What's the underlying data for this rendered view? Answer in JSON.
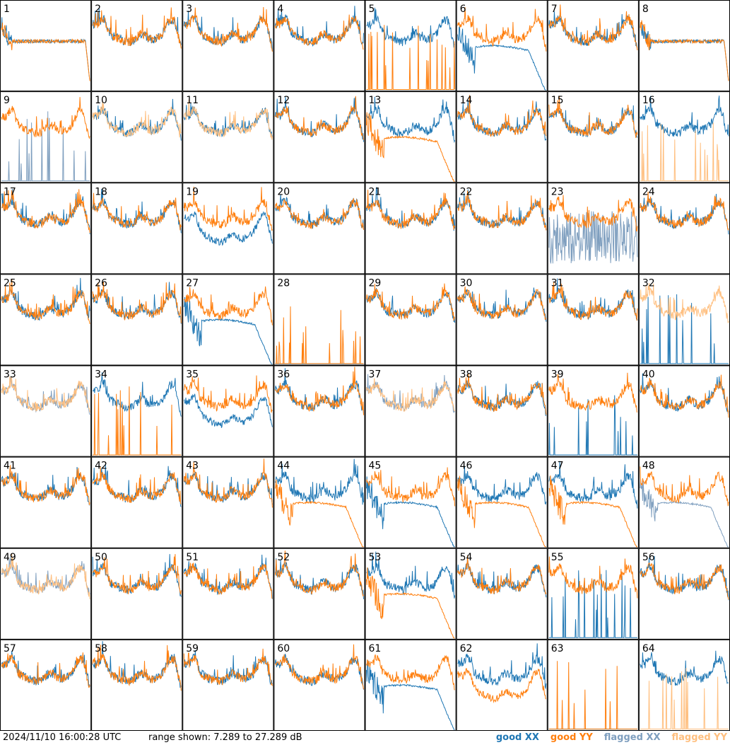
{
  "chart_data": {
    "type": "line",
    "layout": "8x8 small multiples",
    "range_db": [
      7.289,
      27.289
    ],
    "panels": [
      {
        "id": "1",
        "xx": "good",
        "yy": "good",
        "xx_shape": "flat",
        "yy_shape": "flat"
      },
      {
        "id": "2",
        "xx": "good",
        "yy": "good",
        "xx_shape": "normal",
        "yy_shape": "normal"
      },
      {
        "id": "3",
        "xx": "good",
        "yy": "good",
        "xx_shape": "normal",
        "yy_shape": "normal"
      },
      {
        "id": "4",
        "xx": "good",
        "yy": "good",
        "xx_shape": "normal",
        "yy_shape": "normal"
      },
      {
        "id": "5",
        "xx": "good",
        "yy": "good",
        "xx_shape": "normal",
        "yy_shape": "spikes"
      },
      {
        "id": "6",
        "xx": "good",
        "yy": "good",
        "xx_shape": "flat_drop",
        "yy_shape": "normal"
      },
      {
        "id": "7",
        "xx": "good",
        "yy": "good",
        "xx_shape": "normal",
        "yy_shape": "normal"
      },
      {
        "id": "8",
        "xx": "good",
        "yy": "good",
        "xx_shape": "flat",
        "yy_shape": "flat"
      },
      {
        "id": "9",
        "xx": "flagged",
        "yy": "good",
        "xx_shape": "spikes",
        "yy_shape": "normal"
      },
      {
        "id": "10",
        "xx": "good",
        "yy": "flagged",
        "xx_shape": "normal",
        "yy_shape": "normal"
      },
      {
        "id": "11",
        "xx": "good",
        "yy": "flagged",
        "xx_shape": "normal",
        "yy_shape": "normal"
      },
      {
        "id": "12",
        "xx": "good",
        "yy": "good",
        "xx_shape": "normal",
        "yy_shape": "normal"
      },
      {
        "id": "13",
        "xx": "good",
        "yy": "good",
        "xx_shape": "normal",
        "yy_shape": "flat_drop"
      },
      {
        "id": "14",
        "xx": "good",
        "yy": "good",
        "xx_shape": "normal",
        "yy_shape": "normal"
      },
      {
        "id": "15",
        "xx": "good",
        "yy": "good",
        "xx_shape": "normal",
        "yy_shape": "normal"
      },
      {
        "id": "16",
        "xx": "good",
        "yy": "flagged",
        "xx_shape": "normal",
        "yy_shape": "spikes"
      },
      {
        "id": "17",
        "xx": "good",
        "yy": "good",
        "xx_shape": "normal",
        "yy_shape": "normal"
      },
      {
        "id": "18",
        "xx": "good",
        "yy": "good",
        "xx_shape": "normal",
        "yy_shape": "normal"
      },
      {
        "id": "19",
        "xx": "good",
        "yy": "good",
        "xx_shape": "normal_low",
        "yy_shape": "normal"
      },
      {
        "id": "20",
        "xx": "good",
        "yy": "good",
        "xx_shape": "normal",
        "yy_shape": "normal"
      },
      {
        "id": "21",
        "xx": "good",
        "yy": "good",
        "xx_shape": "normal",
        "yy_shape": "normal"
      },
      {
        "id": "22",
        "xx": "good",
        "yy": "good",
        "xx_shape": "normal",
        "yy_shape": "normal"
      },
      {
        "id": "23",
        "xx": "flagged",
        "yy": "good",
        "xx_shape": "noisy",
        "yy_shape": "normal"
      },
      {
        "id": "24",
        "xx": "good",
        "yy": "good",
        "xx_shape": "normal",
        "yy_shape": "normal"
      },
      {
        "id": "25",
        "xx": "good",
        "yy": "good",
        "xx_shape": "normal",
        "yy_shape": "normal"
      },
      {
        "id": "26",
        "xx": "good",
        "yy": "good",
        "xx_shape": "normal",
        "yy_shape": "normal"
      },
      {
        "id": "27",
        "xx": "good",
        "yy": "good",
        "xx_shape": "flat_drop",
        "yy_shape": "normal"
      },
      {
        "id": "28",
        "xx": "good",
        "yy": "good",
        "xx_shape": "none",
        "yy_shape": "spikes"
      },
      {
        "id": "29",
        "xx": "good",
        "yy": "good",
        "xx_shape": "normal",
        "yy_shape": "normal"
      },
      {
        "id": "30",
        "xx": "good",
        "yy": "good",
        "xx_shape": "normal",
        "yy_shape": "normal"
      },
      {
        "id": "31",
        "xx": "good",
        "yy": "good",
        "xx_shape": "normal",
        "yy_shape": "normal"
      },
      {
        "id": "32",
        "xx": "good",
        "yy": "flagged",
        "xx_shape": "spikes",
        "yy_shape": "normal"
      },
      {
        "id": "33",
        "xx": "flagged",
        "yy": "flagged",
        "xx_shape": "normal",
        "yy_shape": "normal"
      },
      {
        "id": "34",
        "xx": "good",
        "yy": "good",
        "xx_shape": "normal",
        "yy_shape": "spikes"
      },
      {
        "id": "35",
        "xx": "good",
        "yy": "good",
        "xx_shape": "normal_low",
        "yy_shape": "normal"
      },
      {
        "id": "36",
        "xx": "good",
        "yy": "good",
        "xx_shape": "normal",
        "yy_shape": "normal"
      },
      {
        "id": "37",
        "xx": "flagged",
        "yy": "flagged",
        "xx_shape": "normal",
        "yy_shape": "normal"
      },
      {
        "id": "38",
        "xx": "good",
        "yy": "good",
        "xx_shape": "normal",
        "yy_shape": "normal"
      },
      {
        "id": "39",
        "xx": "good",
        "yy": "good",
        "xx_shape": "spikes",
        "yy_shape": "normal"
      },
      {
        "id": "40",
        "xx": "good",
        "yy": "good",
        "xx_shape": "normal",
        "yy_shape": "normal"
      },
      {
        "id": "41",
        "xx": "good",
        "yy": "good",
        "xx_shape": "normal",
        "yy_shape": "normal"
      },
      {
        "id": "42",
        "xx": "good",
        "yy": "good",
        "xx_shape": "normal",
        "yy_shape": "normal"
      },
      {
        "id": "43",
        "xx": "good",
        "yy": "good",
        "xx_shape": "normal",
        "yy_shape": "normal"
      },
      {
        "id": "44",
        "xx": "good",
        "yy": "good",
        "xx_shape": "normal",
        "yy_shape": "flat_drop"
      },
      {
        "id": "45",
        "xx": "good",
        "yy": "good",
        "xx_shape": "flat_drop",
        "yy_shape": "normal"
      },
      {
        "id": "46",
        "xx": "good",
        "yy": "good",
        "xx_shape": "normal",
        "yy_shape": "flat_drop"
      },
      {
        "id": "47",
        "xx": "good",
        "yy": "good",
        "xx_shape": "normal",
        "yy_shape": "flat_drop"
      },
      {
        "id": "48",
        "xx": "flagged",
        "yy": "good",
        "xx_shape": "flat_drop",
        "yy_shape": "normal"
      },
      {
        "id": "49",
        "xx": "flagged",
        "yy": "flagged",
        "xx_shape": "normal",
        "yy_shape": "normal"
      },
      {
        "id": "50",
        "xx": "good",
        "yy": "good",
        "xx_shape": "normal",
        "yy_shape": "normal"
      },
      {
        "id": "51",
        "xx": "good",
        "yy": "good",
        "xx_shape": "normal",
        "yy_shape": "normal"
      },
      {
        "id": "52",
        "xx": "good",
        "yy": "good",
        "xx_shape": "normal",
        "yy_shape": "normal"
      },
      {
        "id": "53",
        "xx": "good",
        "yy": "good",
        "xx_shape": "normal",
        "yy_shape": "flat_drop"
      },
      {
        "id": "54",
        "xx": "good",
        "yy": "good",
        "xx_shape": "normal",
        "yy_shape": "normal"
      },
      {
        "id": "55",
        "xx": "good",
        "yy": "good",
        "xx_shape": "spikes",
        "yy_shape": "normal"
      },
      {
        "id": "56",
        "xx": "good",
        "yy": "good",
        "xx_shape": "normal",
        "yy_shape": "normal"
      },
      {
        "id": "57",
        "xx": "good",
        "yy": "good",
        "xx_shape": "normal",
        "yy_shape": "normal"
      },
      {
        "id": "58",
        "xx": "good",
        "yy": "good",
        "xx_shape": "normal",
        "yy_shape": "normal"
      },
      {
        "id": "59",
        "xx": "good",
        "yy": "good",
        "xx_shape": "normal",
        "yy_shape": "normal"
      },
      {
        "id": "60",
        "xx": "good",
        "yy": "good",
        "xx_shape": "normal",
        "yy_shape": "normal"
      },
      {
        "id": "61",
        "xx": "good",
        "yy": "good",
        "xx_shape": "flat_drop",
        "yy_shape": "normal"
      },
      {
        "id": "62",
        "xx": "good",
        "yy": "good",
        "xx_shape": "normal",
        "yy_shape": "normal_low"
      },
      {
        "id": "63",
        "xx": "good",
        "yy": "good",
        "xx_shape": "none",
        "yy_shape": "spikes"
      },
      {
        "id": "64",
        "xx": "good",
        "yy": "flagged",
        "xx_shape": "normal",
        "yy_shape": "spikes"
      }
    ]
  },
  "colors": {
    "good_xx": "#1f77b4",
    "good_yy": "#ff7f0e",
    "flagged_xx": "#7f9fbf",
    "flagged_yy": "#ffbf7f",
    "panel_border": "#000000"
  },
  "footer": {
    "timestamp": "2024/11/10 16:00:28 UTC",
    "range_text": "range shown: 7.289 to 27.289 dB"
  },
  "legend": {
    "good": "good",
    "flagged": "flagged",
    "xx": "XX",
    "yy": "YY"
  }
}
